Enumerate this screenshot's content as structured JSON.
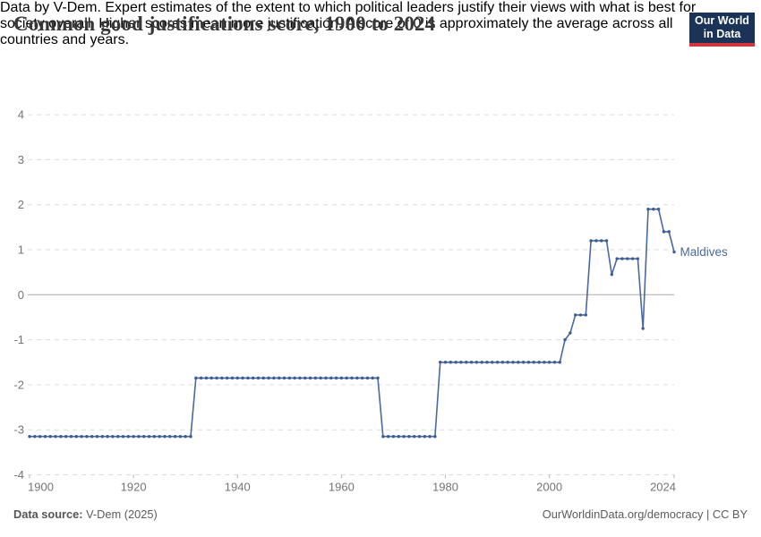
{
  "header": {
    "title": "Common good justifications score, 1900 to 2024",
    "subtitle_lines": [
      "Data by V-Dem. Expert estimates of the extent to which political leaders justify their views with what is best for",
      "society overall. Higher scores mean more justification. A score of 0 is approximately the average across all",
      "countries and years."
    ],
    "logo": {
      "line1": "Our World",
      "line2": "in Data"
    }
  },
  "chart_data": {
    "type": "line",
    "title": "Common good justifications score, 1900 to 2024",
    "xlabel": "",
    "ylabel": "",
    "xlim": [
      1900,
      2024
    ],
    "ylim": [
      -4,
      4
    ],
    "x_ticks": [
      1900,
      1920,
      1940,
      1960,
      1980,
      2000,
      2024
    ],
    "y_ticks": [
      4,
      3,
      2,
      1,
      0,
      -1,
      -2,
      -3,
      -4
    ],
    "grid": "horizontal-dashed",
    "zero_line": "solid",
    "legend_position": "end-of-line-label",
    "series": [
      {
        "name": "Maldives",
        "x_start": 1900,
        "x_step": 1,
        "values": [
          -3.15,
          -3.15,
          -3.15,
          -3.15,
          -3.15,
          -3.15,
          -3.15,
          -3.15,
          -3.15,
          -3.15,
          -3.15,
          -3.15,
          -3.15,
          -3.15,
          -3.15,
          -3.15,
          -3.15,
          -3.15,
          -3.15,
          -3.15,
          -3.15,
          -3.15,
          -3.15,
          -3.15,
          -3.15,
          -3.15,
          -3.15,
          -3.15,
          -3.15,
          -3.15,
          -3.15,
          -3.15,
          -1.85,
          -1.85,
          -1.85,
          -1.85,
          -1.85,
          -1.85,
          -1.85,
          -1.85,
          -1.85,
          -1.85,
          -1.85,
          -1.85,
          -1.85,
          -1.85,
          -1.85,
          -1.85,
          -1.85,
          -1.85,
          -1.85,
          -1.85,
          -1.85,
          -1.85,
          -1.85,
          -1.85,
          -1.85,
          -1.85,
          -1.85,
          -1.85,
          -1.85,
          -1.85,
          -1.85,
          -1.85,
          -1.85,
          -1.85,
          -1.85,
          -1.85,
          -3.15,
          -3.15,
          -3.15,
          -3.15,
          -3.15,
          -3.15,
          -3.15,
          -3.15,
          -3.15,
          -3.15,
          -3.15,
          -1.5,
          -1.5,
          -1.5,
          -1.5,
          -1.5,
          -1.5,
          -1.5,
          -1.5,
          -1.5,
          -1.5,
          -1.5,
          -1.5,
          -1.5,
          -1.5,
          -1.5,
          -1.5,
          -1.5,
          -1.5,
          -1.5,
          -1.5,
          -1.5,
          -1.5,
          -1.5,
          -1.5,
          -1.0,
          -0.85,
          -0.45,
          -0.45,
          -0.45,
          1.2,
          1.2,
          1.2,
          1.2,
          0.45,
          0.8,
          0.8,
          0.8,
          0.8,
          0.8,
          -0.75,
          1.9,
          1.9,
          1.9,
          1.4,
          1.4,
          0.95
        ]
      }
    ]
  },
  "footer": {
    "source_label": "Data source:",
    "source_value": "V-Dem (2025)",
    "credit": "OurWorldinData.org/democracy | CC BY"
  },
  "colors": {
    "line": "#4a699e",
    "dot": "#3c5c95",
    "grid": "#dcdcdc",
    "zero_line": "#a8a8a8",
    "tick": "#b5b5b5",
    "axis_text": "#747474",
    "entity_label": "#4a699e",
    "logo_bg": "#1a3356",
    "logo_bar": "#d2353c"
  }
}
